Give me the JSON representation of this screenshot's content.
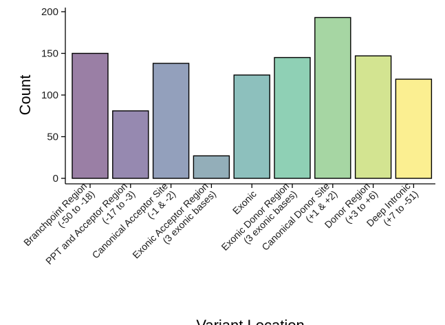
{
  "chart_data": {
    "type": "bar",
    "xlabel": "Variant Location",
    "ylabel": "Count",
    "ylim": [
      0,
      200
    ],
    "yticks": [
      0,
      50,
      100,
      150,
      200
    ],
    "grid": false,
    "categories": [
      [
        "Branchpoint Region",
        "(-50 to -18)"
      ],
      [
        "PPT and Acceptor Region",
        "(-17 to -3)"
      ],
      [
        "Canonical Acceptor Site",
        "(-1 & -2)"
      ],
      [
        "Exonic Acceptor Region",
        "(3 exonic bases)"
      ],
      [
        "Exonic"
      ],
      [
        "Exonic Donor Region",
        "(3 exonic bases)"
      ],
      [
        "Canonical Donor Site",
        "(+1 & +2)"
      ],
      [
        "Donor Region",
        "(+3 to +6)"
      ],
      [
        "Deep Intronic",
        "(+7 to -51)"
      ]
    ],
    "values": [
      150,
      81,
      138,
      27,
      124,
      145,
      193,
      147,
      119
    ],
    "colors": [
      "#9a7fa5",
      "#9689b0",
      "#93a0bc",
      "#93aeb9",
      "#8dc0bd",
      "#8fd0b5",
      "#a6d6a3",
      "#d3e491",
      "#fbef91"
    ]
  }
}
